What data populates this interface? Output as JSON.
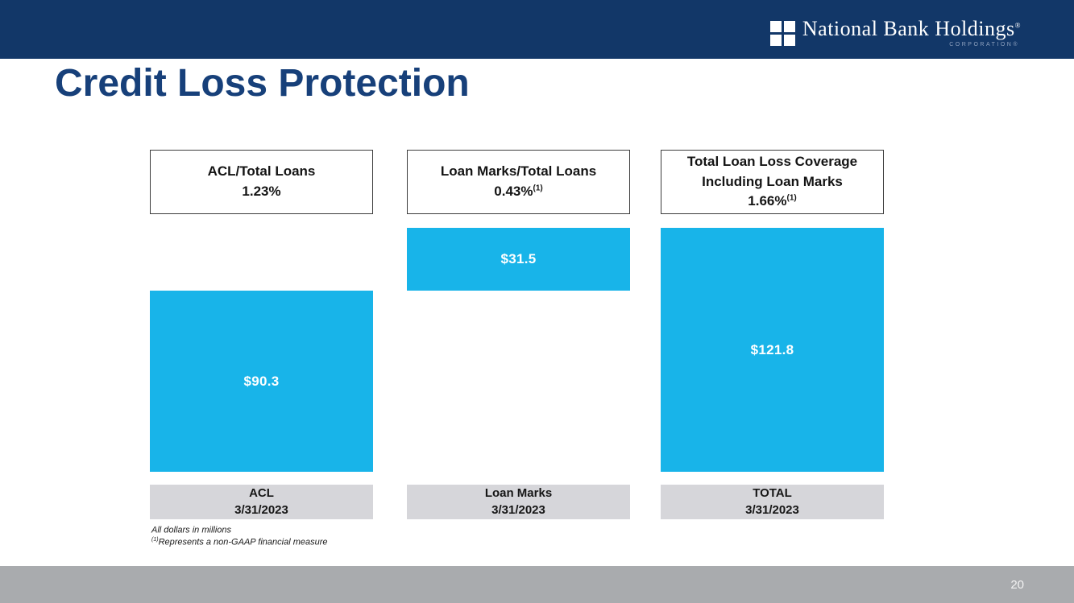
{
  "header": {
    "logo": {
      "name": "National Bank Holdings",
      "trademark": "®",
      "subtext": "CORPORATION®"
    }
  },
  "title": "Credit Loss Protection",
  "chart_data": {
    "type": "bar",
    "title": "Credit Loss Protection",
    "unit": "USD millions",
    "total": 121.8,
    "bar_color": "#18b4e9",
    "columns": [
      {
        "header_line1": "ACL/Total Loans",
        "header_line2": "",
        "percent": "1.23%",
        "percent_footnote": "",
        "value": 90.3,
        "value_label": "$90.3",
        "axis_line1": "ACL",
        "axis_line2": "3/31/2023",
        "align": "bottom"
      },
      {
        "header_line1": "Loan Marks/Total Loans",
        "header_line2": "",
        "percent": "0.43%",
        "percent_footnote": "(1)",
        "value": 31.5,
        "value_label": "$31.5",
        "axis_line1": "Loan Marks",
        "axis_line2": "3/31/2023",
        "align": "top"
      },
      {
        "header_line1": "Total Loan Loss Coverage",
        "header_line2": "Including Loan Marks",
        "percent": "1.66%",
        "percent_footnote": "(1)",
        "value": 121.8,
        "value_label": "$121.8",
        "axis_line1": "TOTAL",
        "axis_line2": "3/31/2023",
        "align": "full"
      }
    ]
  },
  "footnotes": [
    {
      "sup": "",
      "text": "All dollars in millions"
    },
    {
      "sup": "(1)",
      "text": "Represents a non-GAAP financial measure"
    }
  ],
  "footer": {
    "page_number": "20"
  },
  "colors": {
    "navy": "#123768",
    "title_navy": "#17407a",
    "cyan": "#18b4e9",
    "label_gray": "#d6d6da",
    "footer_gray": "#a9abae"
  }
}
